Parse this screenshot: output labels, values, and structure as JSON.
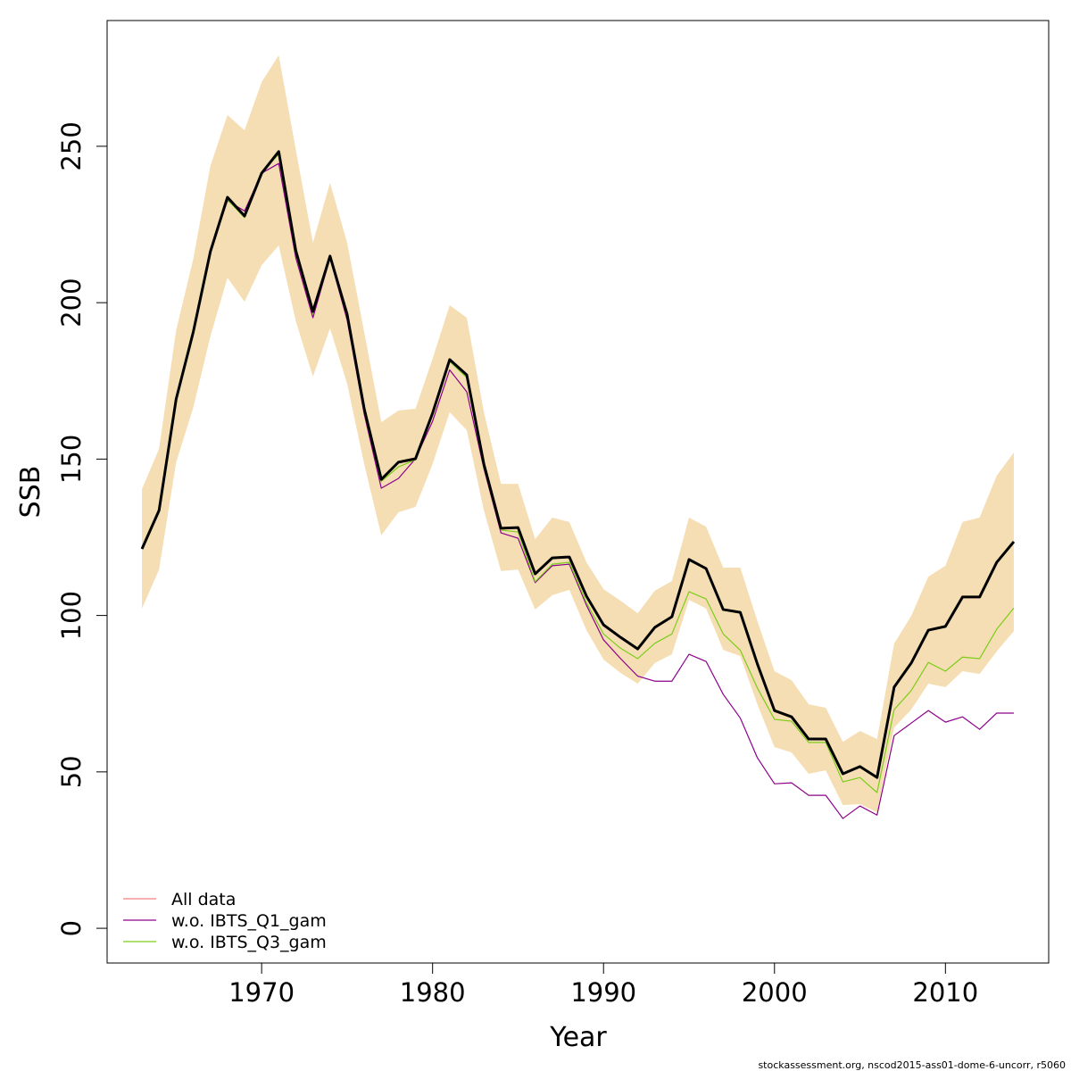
{
  "chart_data": {
    "type": "line",
    "xlabel": "Year",
    "ylabel": "SSB",
    "footnote": "stockassessment.org, nscod2015-ass01-dome-6-uncorr, r5060",
    "x": [
      1963,
      1964,
      1965,
      1966,
      1967,
      1968,
      1969,
      1970,
      1971,
      1972,
      1973,
      1974,
      1975,
      1976,
      1977,
      1978,
      1979,
      1980,
      1981,
      1982,
      1983,
      1984,
      1985,
      1986,
      1987,
      1988,
      1989,
      1990,
      1991,
      1992,
      1993,
      1994,
      1995,
      1996,
      1997,
      1998,
      1999,
      2000,
      2001,
      2002,
      2003,
      2004,
      2005,
      2006,
      2007,
      2008,
      2009,
      2010,
      2011,
      2012,
      2013,
      2014
    ],
    "series": [
      {
        "name": "All data",
        "color": "#f08080",
        "values": [
          121.3,
          133.6,
          169.2,
          190.6,
          216.3,
          233.7,
          227.7,
          241.4,
          248.3,
          216.6,
          197.2,
          214.9,
          196.3,
          166.1,
          143.5,
          149.0,
          150.1,
          164.7,
          181.8,
          176.9,
          148.4,
          127.9,
          128.1,
          113.3,
          118.4,
          118.7,
          106.2,
          97.0,
          93.0,
          89.3,
          96.2,
          99.6,
          117.9,
          115.0,
          101.9,
          101.0,
          84.5,
          69.6,
          67.6,
          60.5,
          60.5,
          49.4,
          51.7,
          48.2,
          77.1,
          84.8,
          95.3,
          96.5,
          105.9,
          105.9,
          117.0,
          123.6
        ]
      },
      {
        "name": "w.o. IBTS_Q1_gam",
        "color": "#8b008b",
        "values": [
          121.3,
          133.6,
          169.2,
          190.6,
          216.3,
          232.6,
          229.3,
          241.4,
          244.5,
          214.3,
          195.2,
          214.3,
          194.5,
          164.4,
          140.7,
          143.8,
          150.1,
          162.1,
          178.5,
          171.5,
          147.0,
          126.4,
          124.7,
          110.5,
          115.9,
          116.4,
          103.3,
          92.2,
          86.2,
          80.6,
          79.0,
          79.0,
          87.6,
          85.3,
          74.8,
          67.2,
          54.5,
          46.2,
          46.5,
          42.5,
          42.5,
          35.1,
          39.1,
          36.2,
          61.6,
          65.6,
          69.6,
          65.9,
          67.6,
          63.6,
          68.8,
          68.8
        ]
      },
      {
        "name": "w.o. IBTS_Q3_gam",
        "color": "#7ccd1a",
        "values": [
          121.3,
          133.6,
          169.2,
          190.6,
          216.3,
          232.9,
          227.2,
          241.4,
          247.5,
          216.0,
          196.6,
          214.9,
          195.6,
          165.5,
          142.9,
          147.5,
          149.8,
          164.1,
          181.2,
          176.0,
          148.0,
          127.3,
          126.7,
          110.8,
          116.4,
          117.0,
          104.1,
          94.1,
          89.5,
          86.2,
          91.1,
          94.1,
          107.6,
          105.3,
          94.1,
          88.9,
          76.8,
          66.8,
          66.2,
          59.4,
          59.4,
          46.8,
          48.2,
          43.4,
          69.9,
          76.0,
          85.0,
          82.2,
          86.7,
          86.2,
          95.6,
          102.4
        ]
      }
    ],
    "estimate_color": "#000000",
    "band": {
      "color": "#f5deb3",
      "upper": [
        140.4,
        153.3,
        191.2,
        214.0,
        243.7,
        260.0,
        255.1,
        270.5,
        279.1,
        248.9,
        219.2,
        238.3,
        219.2,
        190.6,
        161.8,
        165.5,
        166.1,
        182.1,
        199.2,
        195.2,
        165.0,
        142.1,
        142.1,
        124.4,
        131.3,
        129.9,
        117.0,
        108.4,
        104.7,
        100.7,
        107.9,
        111.0,
        131.3,
        128.4,
        115.3,
        115.3,
        98.2,
        82.2,
        79.3,
        71.6,
        70.5,
        59.6,
        63.1,
        60.5,
        91.0,
        99.9,
        112.4,
        115.9,
        129.9,
        131.3,
        144.7,
        152.1
      ],
      "lower": [
        102.2,
        114.7,
        149.0,
        166.4,
        189.2,
        208.0,
        200.3,
        212.0,
        218.3,
        194.1,
        176.4,
        191.8,
        174.1,
        148.4,
        125.6,
        133.0,
        134.7,
        148.4,
        165.0,
        159.2,
        133.6,
        114.2,
        114.7,
        101.9,
        106.5,
        108.2,
        95.3,
        85.9,
        81.6,
        78.2,
        84.8,
        87.6,
        105.0,
        102.2,
        89.0,
        87.0,
        71.6,
        57.9,
        56.2,
        49.4,
        50.5,
        39.4,
        39.7,
        37.1,
        64.2,
        69.9,
        78.2,
        77.1,
        82.2,
        81.3,
        88.5,
        95.0
      ]
    },
    "xlim": [
      1960.96,
      2016.04
    ],
    "ylim": [
      -11.1,
      290.2
    ],
    "xticks": [
      1970,
      1980,
      1990,
      2000,
      2010
    ],
    "yticks": [
      0,
      50,
      100,
      150,
      200,
      250
    ],
    "legend": "bottomleft"
  }
}
